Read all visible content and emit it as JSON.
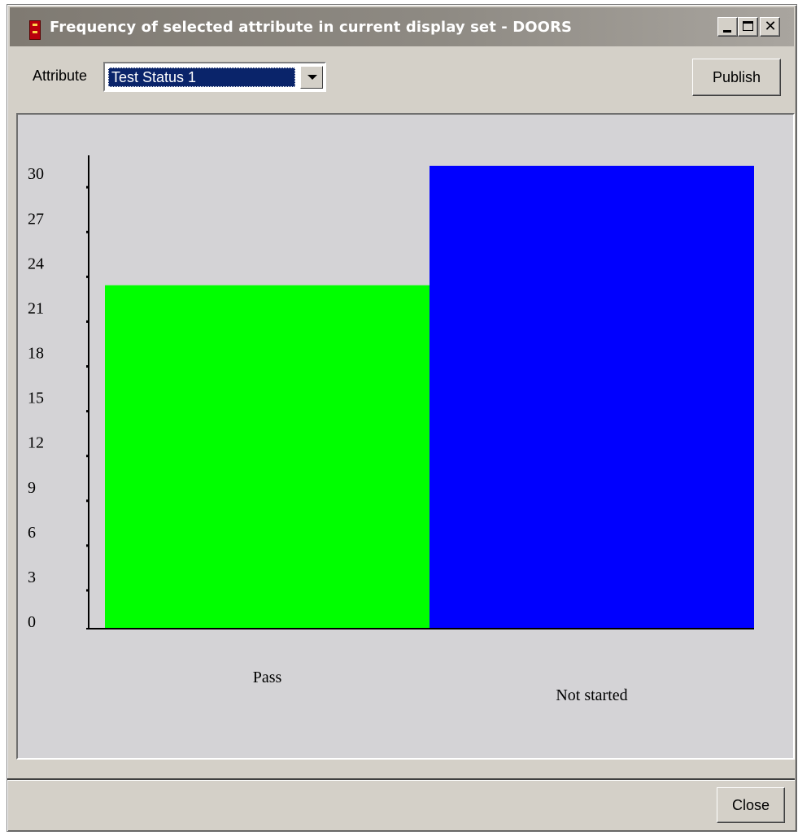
{
  "window": {
    "title": "Frequency of selected attribute in current display set - DOORS",
    "minimize_glyph": "minimize-icon",
    "maximize_glyph": "maximize-icon",
    "close_glyph": "✕"
  },
  "toolbar": {
    "attribute_label": "Attribute",
    "attribute_value": "Test Status 1",
    "publish_label": "Publish"
  },
  "footer": {
    "close_label": "Close"
  },
  "colors": {
    "title_bar": "#7f7a72",
    "selection": "#0a246a",
    "pass_bar": "#00ff00",
    "not_started_bar": "#0000ff"
  },
  "chart_data": {
    "type": "bar",
    "categories": [
      "Pass",
      "Not started"
    ],
    "values": [
      23,
      31
    ],
    "colors": [
      "#00ff00",
      "#0000ff"
    ],
    "yticks": [
      0,
      3,
      6,
      9,
      12,
      15,
      18,
      21,
      24,
      27,
      30
    ],
    "ylim": [
      0,
      31.7
    ],
    "title": "",
    "xlabel": "",
    "ylabel": "",
    "grid": false,
    "legend": "none"
  }
}
